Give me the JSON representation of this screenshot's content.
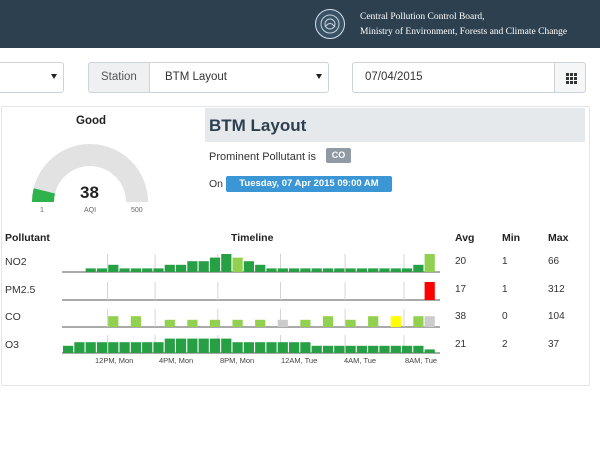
{
  "header": {
    "org_line1": "Central Pollution Control Board,",
    "org_line2": "Ministry of Environment, Forests and Climate Change"
  },
  "controls": {
    "first_select_value": "",
    "station_label": "Station",
    "station_value": "BTM Layout",
    "date_value": "07/04/2015"
  },
  "gauge": {
    "title": "Good",
    "value": "38",
    "label": "AQI",
    "min": "1",
    "max": "500",
    "fill_fraction": 0.076,
    "color": "#2db24c"
  },
  "station": {
    "name": "BTM Layout",
    "prominent_label": "Prominent Pollutant is",
    "prominent_value": "CO",
    "on_label": "On",
    "timestamp": "Tuesday, 07 Apr 2015 09:00 AM"
  },
  "table": {
    "headers": {
      "pollutant": "Pollutant",
      "timeline": "Timeline",
      "avg": "Avg",
      "min": "Min",
      "max": "Max"
    },
    "rows": [
      {
        "name": "NO2",
        "avg": "20",
        "min": "1",
        "max": "66"
      },
      {
        "name": "PM2.5",
        "avg": "17",
        "min": "1",
        "max": "312"
      },
      {
        "name": "CO",
        "avg": "38",
        "min": "0",
        "max": "104"
      },
      {
        "name": "O3",
        "avg": "21",
        "min": "2",
        "max": "37"
      }
    ],
    "x_labels": [
      "12PM, Mon",
      "4PM, Mon",
      "8PM, Mon",
      "12AM, Tue",
      "4AM, Tue",
      "8AM, Tue"
    ]
  },
  "colors": {
    "dark_green": "#27a045",
    "light_green": "#92d050",
    "yellow": "#ffff00",
    "red": "#ff0000",
    "grey": "#cccccc"
  },
  "timeline_data": {
    "NO2": {
      "values": [
        0,
        0,
        1,
        1,
        2,
        1,
        1,
        1,
        1,
        2,
        2,
        3,
        3,
        4,
        5,
        4,
        3,
        2,
        1,
        1,
        1,
        1,
        1,
        1,
        1,
        1,
        1,
        1,
        1,
        1,
        1,
        2,
        5
      ],
      "colors": [
        "d",
        "d",
        "d",
        "d",
        "d",
        "d",
        "d",
        "d",
        "d",
        "d",
        "d",
        "d",
        "d",
        "d",
        "d",
        "l",
        "d",
        "d",
        "d",
        "d",
        "d",
        "d",
        "d",
        "d",
        "d",
        "d",
        "d",
        "d",
        "d",
        "d",
        "d",
        "d",
        "l"
      ]
    },
    "PM2.5": {
      "values": [
        0,
        0,
        0,
        0,
        0,
        0,
        0,
        0,
        0,
        0,
        0,
        0,
        0,
        0,
        0,
        0,
        0,
        0,
        0,
        0,
        0,
        0,
        0,
        0,
        0,
        0,
        0,
        0,
        0,
        0,
        0,
        0,
        5
      ],
      "colors": [
        "d",
        "d",
        "d",
        "d",
        "d",
        "d",
        "d",
        "d",
        "d",
        "d",
        "d",
        "d",
        "d",
        "d",
        "d",
        "d",
        "d",
        "d",
        "d",
        "d",
        "d",
        "d",
        "d",
        "d",
        "d",
        "d",
        "d",
        "d",
        "d",
        "d",
        "d",
        "d",
        "r"
      ]
    },
    "CO": {
      "values": [
        0,
        0,
        0,
        0,
        3,
        0,
        3,
        0,
        0,
        2,
        0,
        2,
        0,
        2,
        0,
        2,
        0,
        2,
        0,
        2,
        0,
        2,
        0,
        3,
        0,
        2,
        0,
        3,
        0,
        3,
        0,
        3,
        3
      ],
      "colors": [
        "d",
        "d",
        "d",
        "d",
        "l",
        "d",
        "l",
        "d",
        "d",
        "l",
        "d",
        "l",
        "d",
        "l",
        "d",
        "l",
        "d",
        "l",
        "d",
        "g",
        "d",
        "l",
        "d",
        "l",
        "d",
        "l",
        "d",
        "l",
        "d",
        "y",
        "d",
        "l",
        "g"
      ]
    },
    "O3": {
      "values": [
        2,
        3,
        3,
        3,
        3,
        3,
        3,
        3,
        3,
        4,
        4,
        4,
        4,
        4,
        4,
        3,
        3,
        3,
        3,
        3,
        3,
        3,
        2,
        2,
        2,
        2,
        2,
        2,
        2,
        2,
        2,
        2,
        1
      ],
      "colors": [
        "d",
        "d",
        "d",
        "d",
        "d",
        "d",
        "d",
        "d",
        "d",
        "d",
        "d",
        "d",
        "d",
        "d",
        "d",
        "d",
        "d",
        "d",
        "d",
        "d",
        "d",
        "d",
        "d",
        "d",
        "d",
        "d",
        "d",
        "d",
        "d",
        "d",
        "d",
        "d",
        "d"
      ]
    }
  }
}
